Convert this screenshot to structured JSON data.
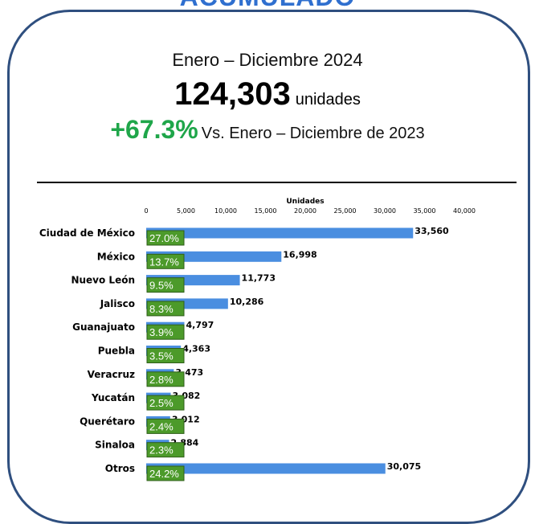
{
  "header": {
    "section_title": "ACUMULADO",
    "period": "Enero – Diciembre 2024",
    "total_value": "124,303",
    "total_unit": "unidades",
    "growth_value": "+67.3%",
    "growth_text": "Vs. Enero – Diciembre de 2023"
  },
  "colors": {
    "frame": "#2f4f7f",
    "bar": "#4a8ee0",
    "pct_box": "#4c9a2a",
    "growth": "#1fa64a"
  },
  "chart_data": {
    "type": "bar",
    "orientation": "horizontal",
    "xlabel": "Unidades",
    "xlim": [
      0,
      40000
    ],
    "xticks": [
      0,
      5000,
      10000,
      15000,
      20000,
      25000,
      30000,
      35000,
      40000
    ],
    "xtick_labels": [
      "0",
      "5,000",
      "10,000",
      "15,000",
      "20,000",
      "25,000",
      "30,000",
      "35,000",
      "40,000"
    ],
    "axis_position": "top",
    "grid": false,
    "legend": "none",
    "categories": [
      "Ciudad de México",
      "México",
      "Nuevo León",
      "Jalisco",
      "Guanajuato",
      "Puebla",
      "Veracruz",
      "Yucatán",
      "Querétaro",
      "Sinaloa",
      "Otros"
    ],
    "values": [
      33560,
      16998,
      11773,
      10286,
      4797,
      4363,
      3473,
      3082,
      3012,
      2884,
      30075
    ],
    "value_labels": [
      "33,560",
      "16,998",
      "11,773",
      "10,286",
      "4,797",
      "4,363",
      "3,473",
      "3,082",
      "3,012",
      "2,884",
      "30,075"
    ],
    "share_labels": [
      "27.0%",
      "13.7%",
      "9.5%",
      "8.3%",
      "3.9%",
      "3.5%",
      "2.8%",
      "2.5%",
      "2.4%",
      "2.3%",
      "24.2%"
    ]
  }
}
